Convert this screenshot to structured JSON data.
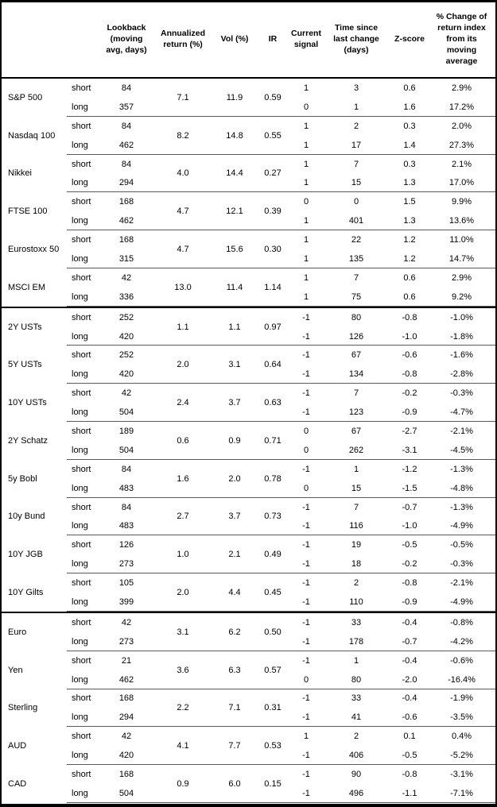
{
  "table": {
    "columns": {
      "lookback": "Lookback (moving avg, days)",
      "annualized_return": "Annualized return (%)",
      "vol": "Vol (%)",
      "ir": "IR",
      "current_signal": "Current signal",
      "time_since_change": "Time since last change (days)",
      "z_score": "Z-score",
      "pct_change": "% Change of return index from its moving average"
    },
    "row_labels": {
      "short": "short",
      "long": "long"
    },
    "sections": [
      {
        "id": "equities",
        "assets": [
          {
            "name": "S&P 500",
            "annualized_return": "7.1",
            "vol": "11.9",
            "ir": "0.59",
            "rows": [
              {
                "position": "short",
                "lookback": "84",
                "signal": "1",
                "days_since_change": "3",
                "z_score": "0.6",
                "pct_change": "2.9%"
              },
              {
                "position": "long",
                "lookback": "357",
                "signal": "0",
                "days_since_change": "1",
                "z_score": "1.6",
                "pct_change": "17.2%"
              }
            ]
          },
          {
            "name": "Nasdaq 100",
            "annualized_return": "8.2",
            "vol": "14.8",
            "ir": "0.55",
            "rows": [
              {
                "position": "short",
                "lookback": "84",
                "signal": "1",
                "days_since_change": "2",
                "z_score": "0.3",
                "pct_change": "2.0%"
              },
              {
                "position": "long",
                "lookback": "462",
                "signal": "1",
                "days_since_change": "17",
                "z_score": "1.4",
                "pct_change": "27.3%"
              }
            ]
          },
          {
            "name": "Nikkei",
            "annualized_return": "4.0",
            "vol": "14.4",
            "ir": "0.27",
            "rows": [
              {
                "position": "short",
                "lookback": "84",
                "signal": "1",
                "days_since_change": "7",
                "z_score": "0.3",
                "pct_change": "2.1%"
              },
              {
                "position": "long",
                "lookback": "294",
                "signal": "1",
                "days_since_change": "15",
                "z_score": "1.3",
                "pct_change": "17.0%"
              }
            ]
          },
          {
            "name": "FTSE 100",
            "annualized_return": "4.7",
            "vol": "12.1",
            "ir": "0.39",
            "rows": [
              {
                "position": "short",
                "lookback": "168",
                "signal": "0",
                "days_since_change": "0",
                "z_score": "1.5",
                "pct_change": "9.9%"
              },
              {
                "position": "long",
                "lookback": "462",
                "signal": "1",
                "days_since_change": "401",
                "z_score": "1.3",
                "pct_change": "13.6%"
              }
            ]
          },
          {
            "name": "Eurostoxx 50",
            "annualized_return": "4.7",
            "vol": "15.6",
            "ir": "0.30",
            "rows": [
              {
                "position": "short",
                "lookback": "168",
                "signal": "1",
                "days_since_change": "22",
                "z_score": "1.2",
                "pct_change": "11.0%"
              },
              {
                "position": "long",
                "lookback": "315",
                "signal": "1",
                "days_since_change": "135",
                "z_score": "1.2",
                "pct_change": "14.7%"
              }
            ]
          },
          {
            "name": "MSCI EM",
            "annualized_return": "13.0",
            "vol": "11.4",
            "ir": "1.14",
            "rows": [
              {
                "position": "short",
                "lookback": "42",
                "signal": "1",
                "days_since_change": "7",
                "z_score": "0.6",
                "pct_change": "2.9%"
              },
              {
                "position": "long",
                "lookback": "336",
                "signal": "1",
                "days_since_change": "75",
                "z_score": "0.6",
                "pct_change": "9.2%"
              }
            ]
          }
        ]
      },
      {
        "id": "bonds",
        "assets": [
          {
            "name": "2Y USTs",
            "annualized_return": "1.1",
            "vol": "1.1",
            "ir": "0.97",
            "rows": [
              {
                "position": "short",
                "lookback": "252",
                "signal": "-1",
                "days_since_change": "80",
                "z_score": "-0.8",
                "pct_change": "-1.0%"
              },
              {
                "position": "long",
                "lookback": "420",
                "signal": "-1",
                "days_since_change": "126",
                "z_score": "-1.0",
                "pct_change": "-1.8%"
              }
            ]
          },
          {
            "name": "5Y USTs",
            "annualized_return": "2.0",
            "vol": "3.1",
            "ir": "0.64",
            "rows": [
              {
                "position": "short",
                "lookback": "252",
                "signal": "-1",
                "days_since_change": "67",
                "z_score": "-0.6",
                "pct_change": "-1.6%"
              },
              {
                "position": "long",
                "lookback": "420",
                "signal": "-1",
                "days_since_change": "134",
                "z_score": "-0.8",
                "pct_change": "-2.8%"
              }
            ]
          },
          {
            "name": "10Y USTs",
            "annualized_return": "2.4",
            "vol": "3.7",
            "ir": "0.63",
            "rows": [
              {
                "position": "short",
                "lookback": "42",
                "signal": "-1",
                "days_since_change": "7",
                "z_score": "-0.2",
                "pct_change": "-0.3%"
              },
              {
                "position": "long",
                "lookback": "504",
                "signal": "-1",
                "days_since_change": "123",
                "z_score": "-0.9",
                "pct_change": "-4.7%"
              }
            ]
          },
          {
            "name": "2Y Schatz",
            "annualized_return": "0.6",
            "vol": "0.9",
            "ir": "0.71",
            "rows": [
              {
                "position": "short",
                "lookback": "189",
                "signal": "0",
                "days_since_change": "67",
                "z_score": "-2.7",
                "pct_change": "-2.1%"
              },
              {
                "position": "long",
                "lookback": "504",
                "signal": "0",
                "days_since_change": "262",
                "z_score": "-3.1",
                "pct_change": "-4.5%"
              }
            ]
          },
          {
            "name": "5y Bobl",
            "annualized_return": "1.6",
            "vol": "2.0",
            "ir": "0.78",
            "rows": [
              {
                "position": "short",
                "lookback": "84",
                "signal": "-1",
                "days_since_change": "1",
                "z_score": "-1.2",
                "pct_change": "-1.3%"
              },
              {
                "position": "long",
                "lookback": "483",
                "signal": "0",
                "days_since_change": "15",
                "z_score": "-1.5",
                "pct_change": "-4.8%"
              }
            ]
          },
          {
            "name": "10y Bund",
            "annualized_return": "2.7",
            "vol": "3.7",
            "ir": "0.73",
            "rows": [
              {
                "position": "short",
                "lookback": "84",
                "signal": "-1",
                "days_since_change": "7",
                "z_score": "-0.7",
                "pct_change": "-1.3%"
              },
              {
                "position": "long",
                "lookback": "483",
                "signal": "-1",
                "days_since_change": "116",
                "z_score": "-1.0",
                "pct_change": "-4.9%"
              }
            ]
          },
          {
            "name": "10Y JGB",
            "annualized_return": "1.0",
            "vol": "2.1",
            "ir": "0.49",
            "rows": [
              {
                "position": "short",
                "lookback": "126",
                "signal": "-1",
                "days_since_change": "19",
                "z_score": "-0.5",
                "pct_change": "-0.5%"
              },
              {
                "position": "long",
                "lookback": "273",
                "signal": "-1",
                "days_since_change": "18",
                "z_score": "-0.2",
                "pct_change": "-0.3%"
              }
            ]
          },
          {
            "name": "10Y Gilts",
            "annualized_return": "2.0",
            "vol": "4.4",
            "ir": "0.45",
            "rows": [
              {
                "position": "short",
                "lookback": "105",
                "signal": "-1",
                "days_since_change": "2",
                "z_score": "-0.8",
                "pct_change": "-2.1%"
              },
              {
                "position": "long",
                "lookback": "399",
                "signal": "-1",
                "days_since_change": "110",
                "z_score": "-0.9",
                "pct_change": "-4.9%"
              }
            ]
          }
        ]
      },
      {
        "id": "currencies",
        "assets": [
          {
            "name": "Euro",
            "annualized_return": "3.1",
            "vol": "6.2",
            "ir": "0.50",
            "rows": [
              {
                "position": "short",
                "lookback": "42",
                "signal": "-1",
                "days_since_change": "33",
                "z_score": "-0.4",
                "pct_change": "-0.8%"
              },
              {
                "position": "long",
                "lookback": "273",
                "signal": "-1",
                "days_since_change": "178",
                "z_score": "-0.7",
                "pct_change": "-4.2%"
              }
            ]
          },
          {
            "name": "Yen",
            "annualized_return": "3.6",
            "vol": "6.3",
            "ir": "0.57",
            "rows": [
              {
                "position": "short",
                "lookback": "21",
                "signal": "-1",
                "days_since_change": "1",
                "z_score": "-0.4",
                "pct_change": "-0.6%"
              },
              {
                "position": "long",
                "lookback": "462",
                "signal": "0",
                "days_since_change": "80",
                "z_score": "-2.0",
                "pct_change": "-16.4%"
              }
            ]
          },
          {
            "name": "Sterling",
            "annualized_return": "2.2",
            "vol": "7.1",
            "ir": "0.31",
            "rows": [
              {
                "position": "short",
                "lookback": "168",
                "signal": "-1",
                "days_since_change": "33",
                "z_score": "-0.4",
                "pct_change": "-1.9%"
              },
              {
                "position": "long",
                "lookback": "294",
                "signal": "-1",
                "days_since_change": "41",
                "z_score": "-0.6",
                "pct_change": "-3.5%"
              }
            ]
          },
          {
            "name": "AUD",
            "annualized_return": "4.1",
            "vol": "7.7",
            "ir": "0.53",
            "rows": [
              {
                "position": "short",
                "lookback": "42",
                "signal": "1",
                "days_since_change": "2",
                "z_score": "0.1",
                "pct_change": "0.4%"
              },
              {
                "position": "long",
                "lookback": "420",
                "signal": "-1",
                "days_since_change": "406",
                "z_score": "-0.5",
                "pct_change": "-5.2%"
              }
            ]
          },
          {
            "name": "CAD",
            "annualized_return": "0.9",
            "vol": "6.0",
            "ir": "0.15",
            "rows": [
              {
                "position": "short",
                "lookback": "168",
                "signal": "-1",
                "days_since_change": "90",
                "z_score": "-0.8",
                "pct_change": "-3.1%"
              },
              {
                "position": "long",
                "lookback": "504",
                "signal": "-1",
                "days_since_change": "496",
                "z_score": "-1.1",
                "pct_change": "-7.1%"
              }
            ]
          }
        ]
      }
    ]
  }
}
